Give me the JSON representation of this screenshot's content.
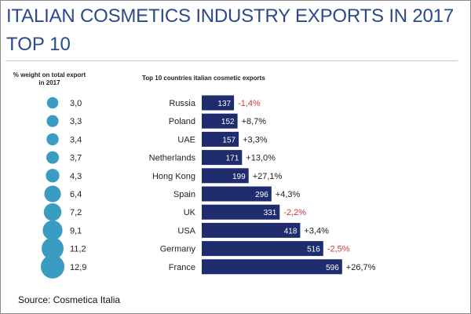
{
  "title_line1": "ITALIAN COSMETICS INDUSTRY EXPORTS IN 2017",
  "title_line2": "TOP 10",
  "left_header": "% weight on total export in 2017",
  "chart_subtitle": "Top 10 countries italian cosmetic exports",
  "source": "Source: Cosmetica Italia",
  "colors": {
    "title": "#2a4a8c",
    "bar": "#1f2d6e",
    "bubble": "#3a9cc0",
    "negative": "#d0383a",
    "text": "#222222"
  },
  "chart_data": [
    {
      "type": "bar",
      "orientation": "horizontal",
      "categories": [
        "Russia",
        "Poland",
        "UAE",
        "Netherlands",
        "Hong Kong",
        "Spain",
        "UK",
        "USA",
        "Germany",
        "France"
      ],
      "values": [
        137,
        152,
        157,
        171,
        199,
        296,
        331,
        418,
        516,
        596
      ],
      "value_labels": [
        "137",
        "152",
        "157",
        "171",
        "199",
        "296",
        "331",
        "418",
        "516",
        "596"
      ],
      "change_labels": [
        "-1,4%",
        "+8,7%",
        "+3,3%",
        "+13,0%",
        "+27,1%",
        "+4,3%",
        "-2,2%",
        "+3,4%",
        "-2,5%",
        "+26,7%"
      ]
    },
    {
      "type": "scatter",
      "values": [
        3.0,
        3.3,
        3.4,
        3.7,
        4.3,
        6.4,
        7.2,
        9.1,
        11.2,
        12.9
      ],
      "value_labels": [
        "3,0",
        "3,3",
        "3,4",
        "3,7",
        "4,3",
        "6,4",
        "7,2",
        "9,1",
        "11,2",
        "12,9"
      ]
    }
  ]
}
